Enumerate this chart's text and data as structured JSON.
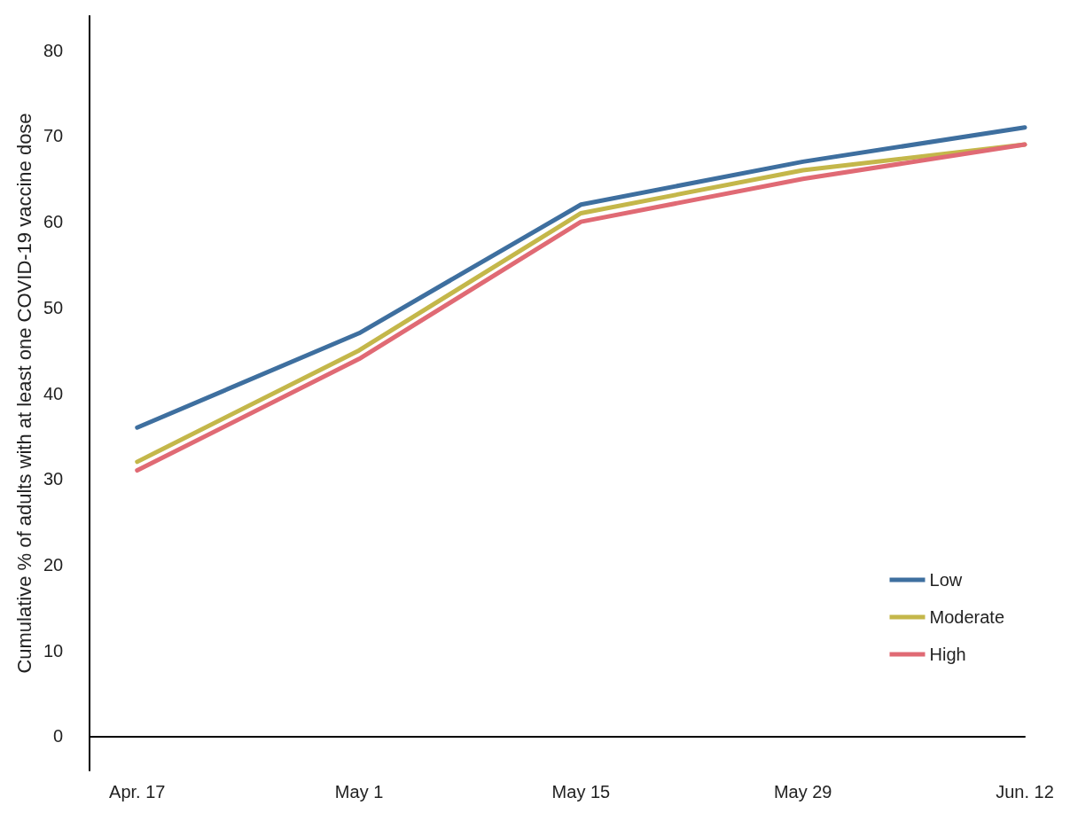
{
  "chart_data": {
    "type": "line",
    "ylabel": "Cumulative % of adults with at least one COVID-19 vaccine dose",
    "x": [
      "--04-17",
      "--05-01",
      "--05-15",
      "--05-29",
      "--06-12"
    ],
    "xlim": [
      "--04-14",
      "--06-12"
    ],
    "xticks": [
      {
        "value": "--04-17",
        "label": "Apr. 17"
      },
      {
        "value": "--05-01",
        "label": "May 1"
      },
      {
        "value": "--05-15",
        "label": "May 15"
      },
      {
        "value": "--05-29",
        "label": "May 29"
      },
      {
        "value": "--06-12",
        "label": "Jun. 12"
      }
    ],
    "ylim": [
      -4,
      84
    ],
    "yticks": [
      0,
      10,
      20,
      30,
      40,
      50,
      60,
      70,
      80
    ],
    "series": [
      {
        "name": "Low",
        "color": "#3e6f9f",
        "values": [
          36,
          47,
          62,
          67,
          71
        ]
      },
      {
        "name": "Moderate",
        "color": "#c4b74a",
        "values": [
          32,
          45,
          61,
          66,
          69
        ]
      },
      {
        "name": "High",
        "color": "#e06a74",
        "values": [
          31,
          44,
          60,
          65,
          69
        ]
      }
    ],
    "grid": false,
    "legend": "bottom right",
    "marker": "none",
    "line_style": "solid"
  }
}
